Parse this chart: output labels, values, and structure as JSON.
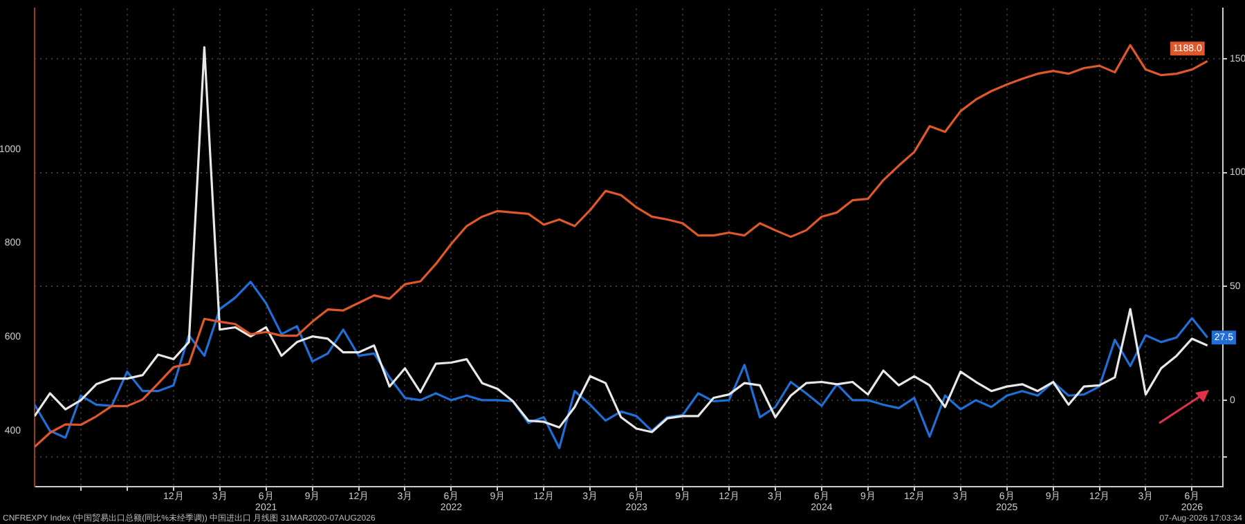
{
  "chart_data": {
    "type": "line",
    "x": [
      "2020-03",
      "2020-04",
      "2020-05",
      "2020-06",
      "2020-07",
      "2020-08",
      "2020-09",
      "2020-10",
      "2020-11",
      "2020-12",
      "2021-01",
      "2021-02",
      "2021-03",
      "2021-04",
      "2021-05",
      "2021-06",
      "2021-07",
      "2021-08",
      "2021-09",
      "2021-10",
      "2021-11",
      "2021-12",
      "2022-01",
      "2022-02",
      "2022-03",
      "2022-04",
      "2022-05",
      "2022-06",
      "2022-07",
      "2022-08",
      "2022-09",
      "2022-10",
      "2022-11",
      "2022-12",
      "2023-01",
      "2023-02",
      "2023-03",
      "2023-04",
      "2023-05",
      "2023-06",
      "2023-07",
      "2023-08",
      "2023-09",
      "2023-10",
      "2023-11",
      "2023-12",
      "2024-01",
      "2024-02",
      "2024-03",
      "2024-04",
      "2024-05",
      "2024-06",
      "2024-07",
      "2024-08",
      "2024-09",
      "2024-10",
      "2024-11",
      "2024-12",
      "2025-01",
      "2025-02",
      "2025-03",
      "2025-04",
      "2025-05",
      "2025-06",
      "2025-07",
      "2025-08",
      "2025-09",
      "2025-10",
      "2025-11",
      "2025-12",
      "2026-01",
      "2026-02",
      "2026-03",
      "2026-04",
      "2026-05",
      "2026-06",
      "2026-07"
    ],
    "series": [
      {
        "color": "#e0572a",
        "axis": "y",
        "values": [
          365,
          395,
          413,
          412,
          430,
          452,
          452,
          466,
          500,
          535,
          542,
          638,
          632,
          627,
          605,
          610,
          602,
          602,
          632,
          658,
          656,
          672,
          688,
          681,
          712,
          718,
          755,
          798,
          836,
          856,
          868,
          865,
          862,
          839,
          850,
          836,
          870,
          911,
          902,
          876,
          856,
          850,
          842,
          816,
          816,
          822,
          816,
          842,
          827,
          813,
          827,
          856,
          865,
          891,
          894,
          934,
          965,
          994,
          1049,
          1037,
          1081,
          1106,
          1124,
          1138,
          1150,
          1161,
          1167,
          1161,
          1173,
          1178,
          1164,
          1222,
          1170,
          1158,
          1161,
          1170,
          1188
        ],
        "value_labels": [
          null,
          null,
          null,
          null,
          null,
          null,
          null,
          null,
          null,
          null,
          null,
          null,
          null,
          null,
          null,
          null,
          null,
          null,
          null,
          null,
          null,
          null,
          null,
          null,
          null,
          null,
          null,
          null,
          null,
          null,
          null,
          null,
          null,
          null,
          null,
          null,
          null,
          null,
          null,
          null,
          null,
          null,
          null,
          null,
          null,
          null,
          null,
          null,
          null,
          null,
          null,
          null,
          null,
          null,
          null,
          null,
          null,
          null,
          null,
          null,
          null,
          null,
          null,
          null,
          null,
          null,
          null,
          null,
          null,
          null,
          null,
          null,
          null,
          null,
          null,
          null,
          "1188.0"
        ]
      },
      {
        "color": "#e8e8e8",
        "axis": "y2",
        "values": [
          -7,
          3,
          -4,
          0,
          7,
          9.5,
          9.5,
          11,
          20,
          18,
          25.5,
          155,
          31,
          32,
          28,
          32,
          19.5,
          25.5,
          28,
          27,
          21,
          21,
          24,
          6,
          14,
          3.5,
          16,
          16.5,
          18,
          7.5,
          5,
          -0.5,
          -9,
          -9.5,
          -12,
          -3,
          10.5,
          7.5,
          -7.5,
          -12.5,
          -14,
          -8,
          -7,
          -7,
          1,
          2.5,
          7.5,
          6.5,
          -7.5,
          2,
          7.5,
          8,
          7,
          8,
          2.5,
          13,
          6.5,
          10.5,
          6.5,
          -3,
          12.5,
          8,
          4,
          6,
          7,
          4,
          8,
          -2,
          6,
          6.5,
          10,
          40,
          2.5,
          14,
          19.5,
          27,
          24
        ]
      },
      {
        "color": "#1f6fd6",
        "axis": "y2",
        "values": [
          -2,
          -13.5,
          -16.5,
          2,
          -2,
          -2.5,
          12.5,
          4,
          4,
          6.5,
          28.5,
          19.5,
          40,
          45,
          52,
          42.5,
          29,
          32.5,
          17,
          20.5,
          31,
          19.5,
          20.5,
          10,
          1,
          0,
          3,
          0,
          2,
          0,
          0,
          -0.5,
          -10,
          -7.5,
          -21,
          4,
          -2,
          -9,
          -5,
          -7,
          -13.5,
          -7.5,
          -6.5,
          3,
          -0.5,
          0,
          15.5,
          -7.5,
          -3,
          8,
          3,
          -2.5,
          7,
          0,
          0,
          -2,
          -3.5,
          1,
          -16,
          2,
          -4,
          0,
          -3,
          2,
          4,
          2,
          8,
          2,
          2.5,
          6,
          26.5,
          15,
          28.5,
          25.5,
          27.5,
          36,
          27.5
        ],
        "value_labels": [
          null,
          null,
          null,
          null,
          null,
          null,
          null,
          null,
          null,
          null,
          null,
          null,
          null,
          null,
          null,
          null,
          null,
          null,
          null,
          null,
          null,
          null,
          null,
          null,
          null,
          null,
          null,
          null,
          null,
          null,
          null,
          null,
          null,
          null,
          null,
          null,
          null,
          null,
          null,
          null,
          null,
          null,
          null,
          null,
          null,
          null,
          null,
          null,
          null,
          null,
          null,
          null,
          null,
          null,
          null,
          null,
          null,
          null,
          null,
          null,
          null,
          null,
          null,
          null,
          null,
          null,
          null,
          null,
          null,
          null,
          null,
          null,
          null,
          null,
          null,
          null,
          "27.5"
        ]
      }
    ],
    "xlim": [
      "2020-03",
      "2026-08"
    ],
    "xticks": [
      {
        "value": "2020-06",
        "label": null
      },
      {
        "value": "2020-09",
        "label": null
      },
      {
        "value": "2020-12",
        "label": "12月"
      },
      {
        "value": "2021-03",
        "label": "3月"
      },
      {
        "value": "2021-06",
        "label": "6月\n2021"
      },
      {
        "value": "2021-09",
        "label": "9月"
      },
      {
        "value": "2021-12",
        "label": "12月"
      },
      {
        "value": "2022-03",
        "label": "3月"
      },
      {
        "value": "2022-06",
        "label": "6月\n2022"
      },
      {
        "value": "2022-09",
        "label": "9月"
      },
      {
        "value": "2022-12",
        "label": "12月"
      },
      {
        "value": "2023-03",
        "label": "3月"
      },
      {
        "value": "2023-06",
        "label": "6月\n2023"
      },
      {
        "value": "2023-09",
        "label": "9月"
      },
      {
        "value": "2023-12",
        "label": "12月"
      },
      {
        "value": "2024-03",
        "label": "3月"
      },
      {
        "value": "2024-06",
        "label": "6月\n2024"
      },
      {
        "value": "2024-09",
        "label": "9月"
      },
      {
        "value": "2024-12",
        "label": "12月"
      },
      {
        "value": "2025-03",
        "label": "3月"
      },
      {
        "value": "2025-06",
        "label": "6月\n2025"
      },
      {
        "value": "2025-09",
        "label": "9月"
      },
      {
        "value": "2025-12",
        "label": "12月"
      },
      {
        "value": "2026-03",
        "label": "3月"
      },
      {
        "value": "2026-06",
        "label": "6月\n2026"
      }
    ],
    "ylim": [
      280,
      1300
    ],
    "yticks": [
      400,
      600,
      800,
      1000
    ],
    "y2lim": [
      -38,
      172
    ],
    "y2ticks": [
      {
        "value": -25,
        "label": null
      },
      0,
      50,
      100,
      150
    ],
    "grid": true,
    "marker": "none",
    "line_style": "solid",
    "annotations": [
      "CNFREXPY Index (中国贸易出口总额(同比%未经季调)) 中国进出口 月线图 31MAR2020-07AUG2026",
      "07-Aug-2026 17:03:34"
    ]
  }
}
